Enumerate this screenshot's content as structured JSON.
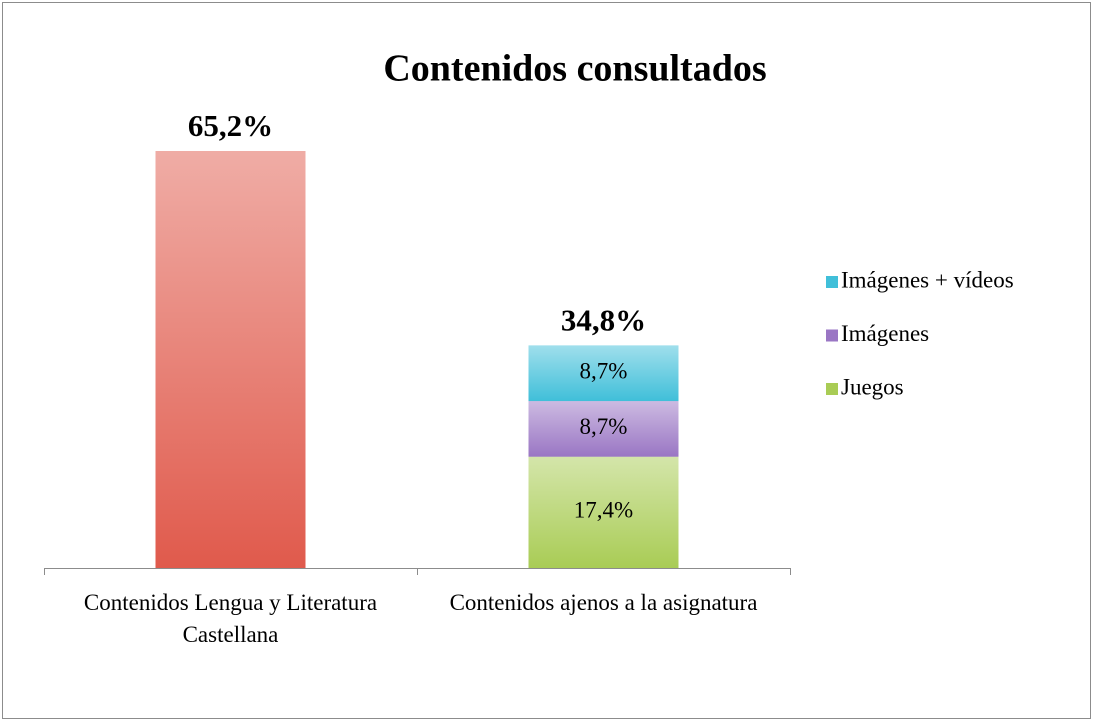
{
  "chart_data": {
    "type": "stacked_bar",
    "title": "Contenidos consultados",
    "categories": [
      "Contenidos Lengua y Literatura Castellana",
      "Contenidos ajenos a la asignatura"
    ],
    "series": [
      {
        "name": null,
        "color": "#e05a4c",
        "values": [
          65.2,
          null
        ]
      },
      {
        "name": "Juegos",
        "color": "#a9cc55",
        "values": [
          null,
          17.4
        ],
        "value_labels": [
          null,
          "17,4%"
        ]
      },
      {
        "name": "Imágenes",
        "color": "#9a76c4",
        "values": [
          null,
          8.7
        ],
        "value_labels": [
          null,
          "8,7%"
        ]
      },
      {
        "name": "Imágenes + vídeos",
        "color": "#40bfd9",
        "values": [
          null,
          8.7
        ],
        "value_labels": [
          null,
          "8,7%"
        ]
      }
    ],
    "totals": {
      "values": [
        65.2,
        34.8
      ],
      "value_labels": [
        "65,2%",
        "34,8%"
      ]
    }
  }
}
